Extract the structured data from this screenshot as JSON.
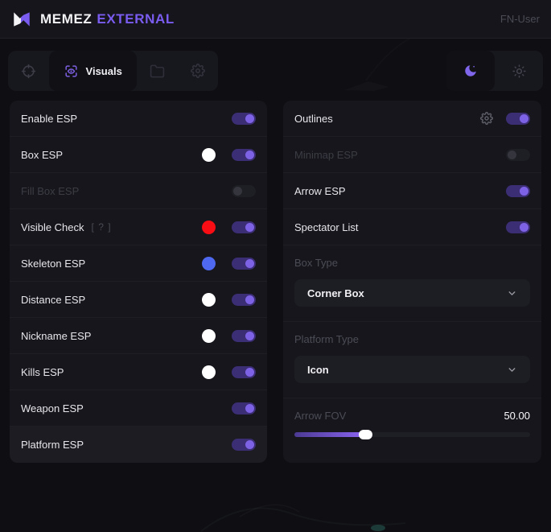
{
  "header": {
    "brand_primary": "MEMEZ",
    "brand_accent": "EXTERNAL",
    "username": "FN-User"
  },
  "toolbar": {
    "tabs": [
      {
        "id": "aim",
        "icon": "crosshair-icon",
        "label": "",
        "active": false
      },
      {
        "id": "visuals",
        "icon": "visuals-eye-icon",
        "label": "Visuals",
        "active": true
      },
      {
        "id": "configs",
        "icon": "folder-icon",
        "label": "",
        "active": false
      },
      {
        "id": "settings",
        "icon": "gear-icon",
        "label": "",
        "active": false
      }
    ],
    "theme": {
      "selected": "moon",
      "options": [
        {
          "id": "moon",
          "icon": "moon-icon",
          "active": true
        },
        {
          "id": "sun",
          "icon": "sun-icon",
          "active": false
        }
      ]
    }
  },
  "panels": {
    "left": {
      "rows": [
        {
          "type": "toggle",
          "label": "Enable ESP",
          "on": true
        },
        {
          "type": "toggle",
          "label": "Box ESP",
          "on": true,
          "color": "#ffffff"
        },
        {
          "type": "toggle",
          "label": "Fill Box ESP",
          "on": false,
          "disabled": true
        },
        {
          "type": "toggle",
          "label": "Visible Check",
          "on": true,
          "color": "#f70d13",
          "badge": "[ ? ]"
        },
        {
          "type": "toggle",
          "label": "Skeleton ESP",
          "on": true,
          "color": "#4e68f0"
        },
        {
          "type": "toggle",
          "label": "Distance ESP",
          "on": true,
          "color": "#ffffff"
        },
        {
          "type": "toggle",
          "label": "Nickname ESP",
          "on": true,
          "color": "#ffffff"
        },
        {
          "type": "toggle",
          "label": "Kills ESP",
          "on": true,
          "color": "#ffffff"
        },
        {
          "type": "toggle",
          "label": "Weapon ESP",
          "on": true
        },
        {
          "type": "toggle",
          "label": "Platform ESP",
          "on": true,
          "hovered": true
        }
      ]
    },
    "right": {
      "rows": [
        {
          "type": "toggle",
          "label": "Outlines",
          "on": true,
          "gear": true
        },
        {
          "type": "toggle",
          "label": "Minimap ESP",
          "on": false,
          "disabled": true
        },
        {
          "type": "toggle",
          "label": "Arrow ESP",
          "on": true
        },
        {
          "type": "toggle",
          "label": "Spectator List",
          "on": true
        },
        {
          "type": "select",
          "label": "Box Type",
          "value": "Corner Box"
        },
        {
          "type": "select",
          "label": "Platform Type",
          "value": "Icon"
        },
        {
          "type": "slider",
          "label": "Arrow FOV",
          "value": "50.00",
          "percent": 30
        }
      ]
    }
  },
  "colors": {
    "accent": "#7b5cf0",
    "toggle_track_on": "#3c2e74",
    "toggle_knob_on": "#7e62e6",
    "swatch_white": "#ffffff",
    "swatch_red": "#f70d13",
    "swatch_blue": "#4e68f0",
    "panel_bg": "#16161c",
    "page_bg": "#0f0f13"
  }
}
